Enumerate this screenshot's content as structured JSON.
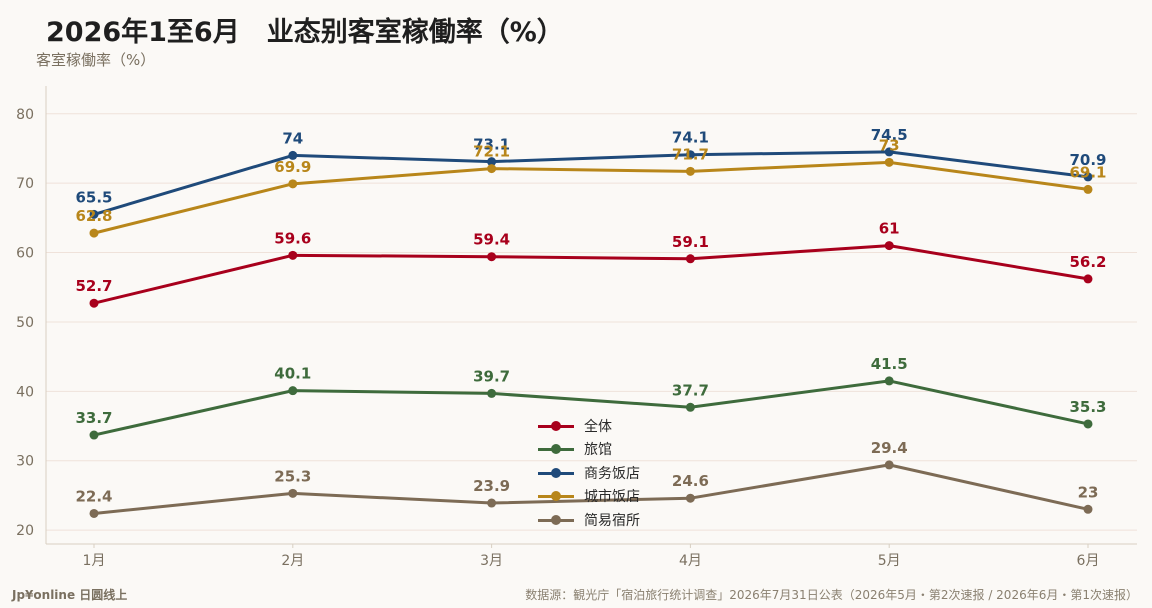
{
  "title": "2026年1至6月　业态别客室稼働率（%）",
  "footer": {
    "brand": "Jp¥online 日圆线上",
    "source": "数据源：観光庁「宿泊旅行统计调查」2026年7月31日公表（2026年5月・第2次速报 / 2026年6月・第1次速报）"
  },
  "chart_data": {
    "type": "line",
    "ylabel": "客室稼働率（%）",
    "xlabel": "",
    "categories": [
      "1月",
      "2月",
      "3月",
      "4月",
      "5月",
      "6月"
    ],
    "ylim": [
      18,
      84
    ],
    "yticks": [
      20,
      30,
      40,
      50,
      60,
      70,
      80
    ],
    "grid": "horizontal",
    "legend_position": "center-bottom",
    "series": [
      {
        "name": "全体",
        "color": "#a8001c",
        "values": [
          52.7,
          59.6,
          59.4,
          59.1,
          61,
          56.2
        ]
      },
      {
        "name": "旅馆",
        "color": "#3e6b3c",
        "values": [
          33.7,
          40.1,
          39.7,
          37.7,
          41.5,
          35.3
        ]
      },
      {
        "name": "商务饭店",
        "color": "#1f4a7a",
        "values": [
          65.5,
          74,
          73.1,
          74.1,
          74.5,
          70.9
        ]
      },
      {
        "name": "城市饭店",
        "color": "#b8861a",
        "values": [
          62.8,
          69.9,
          72.1,
          71.7,
          73,
          69.1
        ]
      },
      {
        "name": "简易宿所",
        "color": "#7d6b55",
        "values": [
          22.4,
          25.3,
          23.9,
          24.6,
          29.4,
          23
        ]
      }
    ]
  }
}
